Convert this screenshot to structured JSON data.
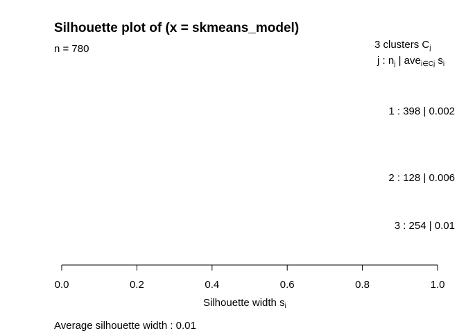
{
  "chart_data": {
    "type": "bar",
    "title": "Silhouette plot of (x = skmeans_model)",
    "n_label": "n = 780",
    "legend_header": "3  clusters  C",
    "legend_header_sub": "j",
    "legend_subheader_parts": [
      "j :  n",
      "j",
      " | ave",
      "i∈Cj",
      "  s",
      "i"
    ],
    "clusters": [
      {
        "label": "1 :   398  |  0.002",
        "id": 1,
        "n": 398,
        "avg_width": 0.002
      },
      {
        "label": "2 :   128  |  0.006",
        "id": 2,
        "n": 128,
        "avg_width": 0.006
      },
      {
        "label": "3 :   254  |  0.01",
        "id": 3,
        "n": 254,
        "avg_width": 0.01
      }
    ],
    "xlabel": "Silhouette width s",
    "xlabel_sub": "i",
    "xlim": [
      0.0,
      1.0
    ],
    "xticks": [
      "0.0",
      "0.2",
      "0.4",
      "0.6",
      "0.8",
      "1.0"
    ],
    "average_label": "Average silhouette width :  0.01",
    "average_width": 0.01
  }
}
